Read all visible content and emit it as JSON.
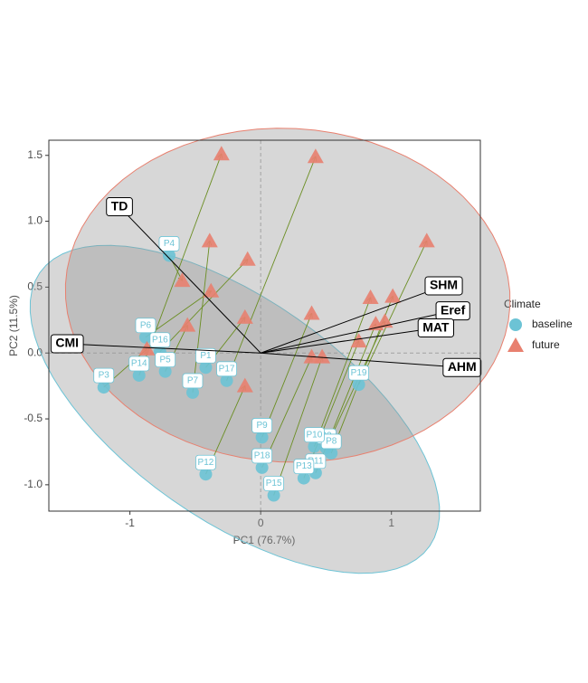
{
  "chart_data": {
    "type": "biplot",
    "xlabel": "PC1 (76.7%)",
    "ylabel": "PC2 (11.5%)",
    "xlim": [
      -1.62,
      1.68
    ],
    "ylim": [
      -1.2,
      1.615
    ],
    "xticks": [
      -1,
      0,
      1
    ],
    "yticks": [
      {
        "value": -1,
        "label": "-1.0"
      },
      -0.5,
      {
        "value": 0,
        "label": "0.0"
      },
      0.5,
      {
        "value": 1,
        "label": "1.0"
      },
      1.5
    ],
    "legend_title": "Climate",
    "series": [
      {
        "name": "baseline",
        "color": "#6cc3d5",
        "marker": "circle",
        "labels": [
          "P1",
          "P2",
          "P3",
          "P4",
          "P5",
          "P6",
          "P7",
          "P8",
          "P9",
          "P10",
          "P11",
          "P12",
          "P13",
          "P14",
          "P15",
          "P16",
          "P17",
          "P18",
          "P19"
        ],
        "x": [
          -0.42,
          0.5,
          -1.2,
          -0.7,
          -0.73,
          -0.88,
          -0.52,
          0.54,
          0.01,
          0.41,
          0.42,
          -0.42,
          0.33,
          -0.93,
          0.1,
          -0.77,
          -0.26,
          0.01,
          0.75
        ],
        "y": [
          -0.11,
          -0.72,
          -0.26,
          0.74,
          -0.14,
          0.12,
          -0.3,
          -0.76,
          -0.64,
          -0.71,
          -0.91,
          -0.92,
          -0.95,
          -0.17,
          -1.08,
          0.01,
          -0.21,
          -0.87,
          -0.24
        ]
      },
      {
        "name": "future",
        "color": "#e8806f",
        "marker": "triangle",
        "x": [
          -0.12,
          0.95,
          -0.87,
          -0.6,
          -0.56,
          -0.38,
          -0.39,
          1.01,
          0.39,
          0.84,
          0.88,
          -0.12,
          0.75,
          -0.3,
          0.47,
          -0.1,
          0.42,
          0.39,
          1.27
        ],
        "y": [
          0.27,
          0.24,
          0.03,
          0.55,
          0.21,
          0.47,
          0.85,
          0.43,
          0.3,
          0.42,
          0.22,
          -0.25,
          0.09,
          1.51,
          -0.03,
          0.71,
          1.49,
          -0.03,
          0.85
        ]
      }
    ],
    "arrow_color": "#6b8e23",
    "loadings": {
      "labels": [
        "TD",
        "SHM",
        "Eref",
        "MAT",
        "AHM",
        "CMI"
      ],
      "x": [
        -1.08,
        1.4,
        1.47,
        1.34,
        1.54,
        -1.48
      ],
      "y": [
        1.11,
        0.51,
        0.32,
        0.19,
        -0.11,
        0.07
      ]
    }
  }
}
